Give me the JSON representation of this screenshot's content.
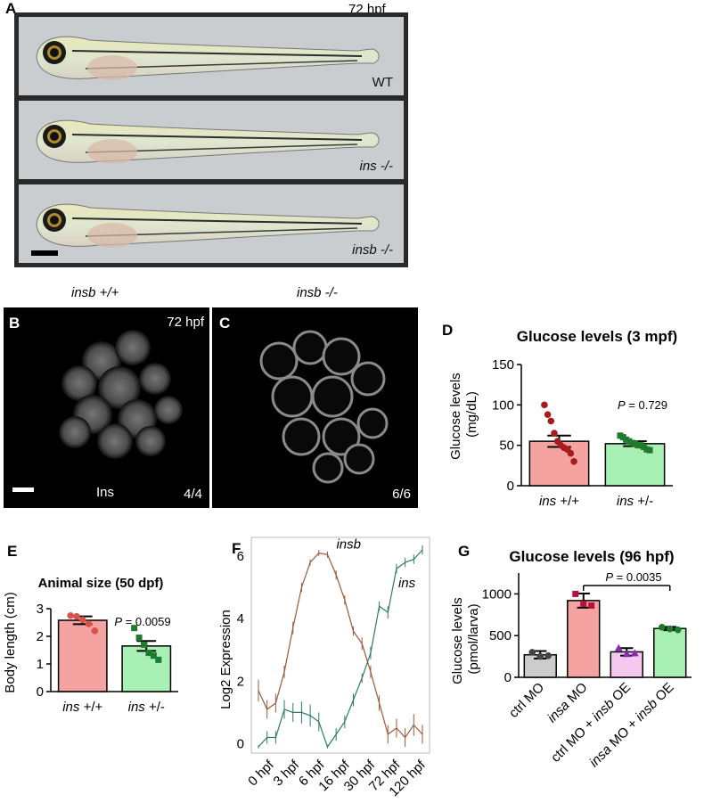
{
  "panels": {
    "A": {
      "label": "A",
      "stage": "72 hpf",
      "fish_labels": [
        "WT",
        "ins -/-",
        "insb -/-"
      ]
    },
    "B": {
      "label": "B",
      "title": "insb +/+",
      "stage": "72 hpf",
      "stain": "Ins",
      "count": "4/4"
    },
    "C": {
      "label": "C",
      "title": "insb -/-",
      "count": "6/6"
    },
    "D": {
      "label": "D",
      "title": "Glucose levels (3 mpf)"
    },
    "E": {
      "label": "E",
      "title": "Animal size (50 dpf)"
    },
    "F": {
      "label": "F"
    },
    "G": {
      "label": "G",
      "title": "Glucose levels (96 hpf)"
    }
  },
  "chart_data": [
    {
      "id": "D",
      "type": "bar",
      "title": "Glucose levels (3 mpf)",
      "ylabel": "Glucose levels (mg/dL)",
      "ylabel_lines": [
        "Glucose levels",
        "(mg/dL)"
      ],
      "ylim": [
        0,
        150
      ],
      "yticks": [
        0,
        50,
        100,
        150
      ],
      "categories": [
        "ins +/+",
        "ins +/-"
      ],
      "values": [
        55,
        52
      ],
      "sem": [
        7,
        3
      ],
      "points": [
        [
          100,
          88,
          80,
          65,
          55,
          50,
          47,
          45,
          40,
          30
        ],
        [
          62,
          60,
          57,
          55,
          53,
          52,
          50,
          50,
          48,
          45,
          44
        ]
      ],
      "colors": [
        "#f4a3a0",
        "#a8f0b4"
      ],
      "point_colors": [
        "#a51d1d",
        "#1e7a2c"
      ],
      "annotation": "P = 0.729",
      "annotation_p": "P",
      "annotation_rest": " = 0.729"
    },
    {
      "id": "E",
      "type": "bar",
      "title": "Animal size (50 dpf)",
      "ylabel": "Body length (cm)",
      "ylim": [
        0,
        3
      ],
      "yticks": [
        0,
        1,
        2,
        3
      ],
      "categories": [
        "ins +/+",
        "ins +/-"
      ],
      "values": [
        2.58,
        1.65
      ],
      "sem": [
        0.14,
        0.18
      ],
      "points": [
        [
          2.75,
          2.72,
          2.6,
          2.45,
          2.2
        ],
        [
          2.3,
          1.95,
          1.7,
          1.4,
          1.3,
          1.15
        ]
      ],
      "colors": [
        "#f4a3a0",
        "#a8f0b4"
      ],
      "point_colors": [
        "#d9534a",
        "#1e7a2c"
      ],
      "annotation": "P = 0.0059",
      "annotation_p": "P",
      "annotation_rest": " = 0.0059"
    },
    {
      "id": "F",
      "type": "line",
      "ylabel": "Log2 Expression",
      "ylim": [
        -0.3,
        6.6
      ],
      "yticks": [
        0,
        2,
        4,
        6
      ],
      "x_tick_labels": [
        "0 hpf",
        "3 hpf",
        "6 hpf",
        "16 hpf",
        "30 hpf",
        "72 hpf",
        "120 hpf"
      ],
      "series": [
        {
          "name": "insb",
          "color": "#9a5a3a",
          "values": [
            1.7,
            1.1,
            1.3,
            2.3,
            3.7,
            5.0,
            5.8,
            6.1,
            6.05,
            5.4,
            4.6,
            3.6,
            3.2,
            2.3,
            1.3,
            0.3,
            0.5,
            0.2,
            0.6,
            0.3
          ],
          "err": [
            0.35,
            0.3,
            0.3,
            0.2,
            0.2,
            0.15,
            0.1,
            0.1,
            0.1,
            0.15,
            0.15,
            0.15,
            0.2,
            0.2,
            0.25,
            0.3,
            0.3,
            0.3,
            0.35,
            0.3
          ]
        },
        {
          "name": "ins",
          "color": "#2e7a6a",
          "values": [
            -0.1,
            0.2,
            0.2,
            1.1,
            1.0,
            1.0,
            0.9,
            0.7,
            -0.1,
            0.3,
            0.7,
            1.4,
            2.1,
            2.9,
            4.4,
            4.2,
            5.6,
            5.8,
            5.9,
            6.2
          ],
          "err": [
            0.05,
            0.2,
            0.2,
            0.3,
            0.3,
            0.35,
            0.35,
            0.3,
            0.05,
            0.2,
            0.2,
            0.2,
            0.15,
            0.2,
            0.15,
            0.2,
            0.15,
            0.15,
            0.15,
            0.15
          ]
        }
      ]
    },
    {
      "id": "G",
      "type": "bar",
      "title": "Glucose levels (96 hpf)",
      "ylabel": "Glucose levels (pmol/larva)",
      "ylabel_lines": [
        "Glucose levels",
        "(pmol/larva)"
      ],
      "ylim": [
        0,
        1250
      ],
      "yticks": [
        0,
        500,
        1000
      ],
      "categories": [
        "ctrl MO",
        "insa MO",
        "ctrl MO + insb OE",
        "insa MO + insb OE"
      ],
      "values": [
        270,
        920,
        305,
        585
      ],
      "sem": [
        45,
        85,
        45,
        20
      ],
      "points": [
        [
          300,
          250,
          260
        ],
        [
          1000,
          880,
          860
        ],
        [
          350,
          280,
          290
        ],
        [
          600,
          580,
          570
        ]
      ],
      "colors": [
        "#cccccc",
        "#f4a3a0",
        "#f5c8f0",
        "#a8f0b4"
      ],
      "point_colors": [
        "#444444",
        "#b3123a",
        "#8a2bb0",
        "#1e7a2c"
      ],
      "annotation": "P = 0.0035",
      "annotation_p": "P",
      "annotation_rest": " = 0.0035"
    }
  ]
}
